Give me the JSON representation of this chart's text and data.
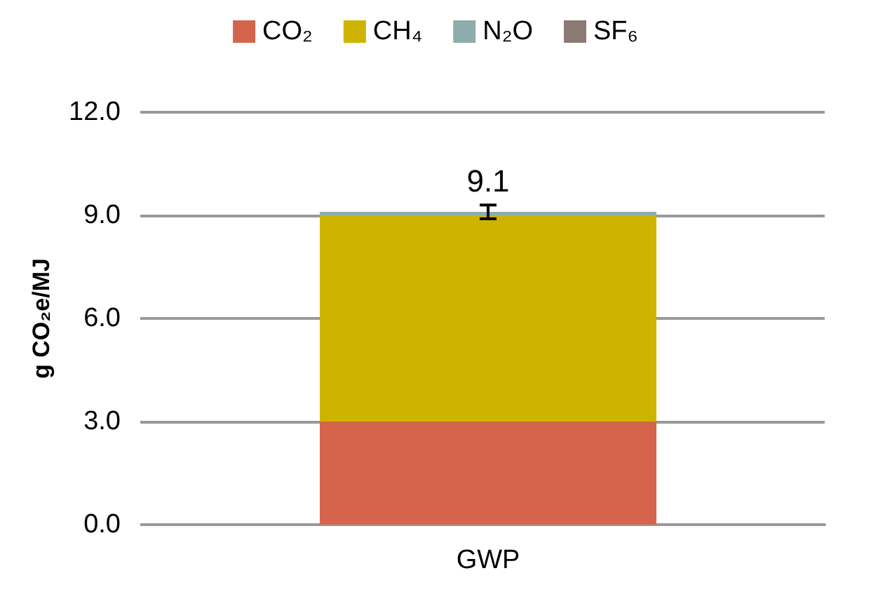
{
  "chart_data": {
    "type": "bar",
    "stacked": true,
    "categories": [
      "GWP"
    ],
    "ylabel": "g CO₂e/MJ",
    "ylim": [
      0,
      12
    ],
    "yticks": [
      {
        "value": 0,
        "label": "0.0"
      },
      {
        "value": 3,
        "label": "3.0"
      },
      {
        "value": 6,
        "label": "6.0"
      },
      {
        "value": 9,
        "label": "9.0"
      },
      {
        "value": 12,
        "label": "12.0"
      }
    ],
    "grid": "y",
    "legend": "top",
    "totals": [
      "9.1"
    ],
    "series": [
      {
        "name": "CO₂",
        "color": "#d4644b",
        "values": [
          3.0
        ]
      },
      {
        "name": "CH₄",
        "color": "#cdb400",
        "values": [
          6.0
        ]
      },
      {
        "name": "N₂O",
        "color": "#8cadac",
        "values": [
          0.1
        ]
      },
      {
        "name": "SF₆",
        "color": "#8a7a72",
        "values": [
          0.0
        ],
        "errors": [
          0.2
        ]
      }
    ]
  }
}
